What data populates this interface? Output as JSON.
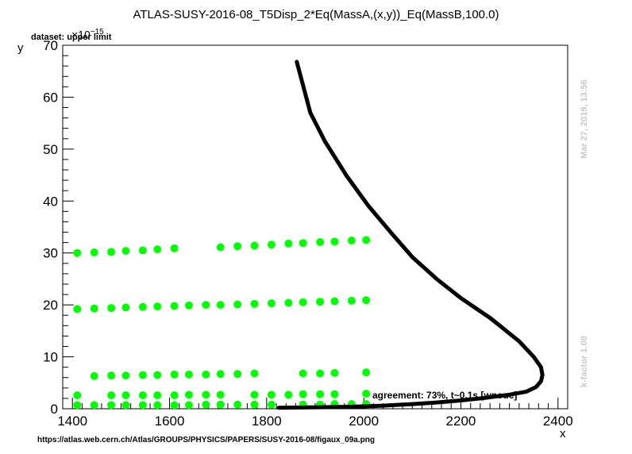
{
  "title": "ATLAS-SUSY-2016-08_T5Disp_2*Eq(MassA,(x,y))_Eq(MassB,100.0)",
  "dataset_label": "dataset: upper limit",
  "exponent_label": {
    "base": "×10",
    "power": "−15"
  },
  "agreement_text": "agreement: 73%, t~0.1s [wnouc]",
  "footer_url": "https://atlas.web.cern.ch/Atlas/GROUPS/PHYSICS/PAPERS/SUSY-2016-08/figaux_09a.png",
  "side_date": "Mar 27, 2019, 13:56",
  "side_kfactor": "k-factor 1.00",
  "colors": {
    "points": "#00ff00",
    "curve": "#000000",
    "side_text": "#c8c8c8"
  },
  "chart_data": {
    "type": "scatter",
    "title": "ATLAS-SUSY-2016-08_T5Disp_2*Eq(MassA,(x,y))_Eq(MassB,100.0)",
    "xlabel": "x",
    "ylabel": "y",
    "xlim": [
      1380,
      2420
    ],
    "ylim": [
      0,
      70
    ],
    "xticks": [
      1400,
      1600,
      1800,
      2000,
      2200,
      2400
    ],
    "yticks": [
      0,
      10,
      20,
      30,
      40,
      50,
      60,
      70
    ],
    "grid": false,
    "series": [
      {
        "kind": "points",
        "marker": "circle",
        "x": [
          1410,
          1445,
          1480,
          1510,
          1545,
          1575,
          1610,
          1705,
          1740,
          1775,
          1810,
          1845,
          1875,
          1910,
          1940,
          1975,
          2005,
          1410,
          1445,
          1480,
          1510,
          1545,
          1575,
          1610,
          1640,
          1675,
          1705,
          1740,
          1775,
          1810,
          1845,
          1875,
          1910,
          1940,
          1975,
          2005,
          1445,
          1480,
          1510,
          1545,
          1575,
          1610,
          1640,
          1675,
          1705,
          1740,
          1775,
          1875,
          1910,
          1940,
          2005,
          1410,
          1480,
          1510,
          1545,
          1575,
          1610,
          1640,
          1675,
          1705,
          1775,
          1810,
          1845,
          1875,
          1910,
          1940,
          2005,
          1410,
          1445,
          1480,
          1510,
          1545,
          1575,
          1610,
          1640,
          1675,
          1705,
          1740,
          1775,
          1810,
          1875,
          1910,
          1940,
          1975,
          2005
        ],
        "y": [
          30.0,
          30.1,
          30.2,
          30.4,
          30.5,
          30.7,
          30.9,
          31.1,
          31.3,
          31.4,
          31.6,
          31.8,
          31.9,
          32.1,
          32.2,
          32.4,
          32.5,
          19.2,
          19.3,
          19.4,
          19.5,
          19.6,
          19.7,
          19.8,
          19.9,
          20.0,
          20.0,
          20.1,
          20.2,
          20.3,
          20.4,
          20.5,
          20.6,
          20.7,
          20.8,
          20.9,
          6.3,
          6.4,
          6.4,
          6.5,
          6.5,
          6.6,
          6.6,
          6.6,
          6.7,
          6.7,
          6.8,
          6.8,
          6.8,
          6.9,
          7.0,
          2.6,
          2.6,
          2.6,
          2.6,
          2.6,
          2.6,
          2.7,
          2.7,
          2.7,
          2.7,
          2.7,
          2.7,
          2.8,
          2.8,
          2.8,
          2.9,
          0.7,
          0.7,
          0.7,
          0.7,
          0.7,
          0.7,
          0.7,
          0.7,
          0.8,
          0.8,
          0.8,
          0.8,
          0.8,
          0.8,
          0.8,
          0.9,
          0.9,
          0.9
        ]
      },
      {
        "kind": "line",
        "x": [
          1825,
          1870,
          1920,
          1980,
          2040,
          2100,
          2150,
          2200,
          2250,
          2300,
          2335,
          2355,
          2365,
          2368,
          2365,
          2350,
          2320,
          2260,
          2200,
          2150,
          2100,
          2060,
          2010,
          1965,
          1920,
          1890,
          1862
        ],
        "y": [
          0.2,
          0.25,
          0.3,
          0.4,
          0.6,
          0.9,
          1.2,
          1.6,
          2.1,
          2.7,
          3.3,
          4.2,
          5.3,
          6.5,
          8.0,
          10.0,
          13.0,
          17.5,
          21.3,
          25.0,
          29.2,
          33.5,
          39.0,
          44.8,
          51.5,
          57.0,
          66.8
        ]
      }
    ]
  }
}
